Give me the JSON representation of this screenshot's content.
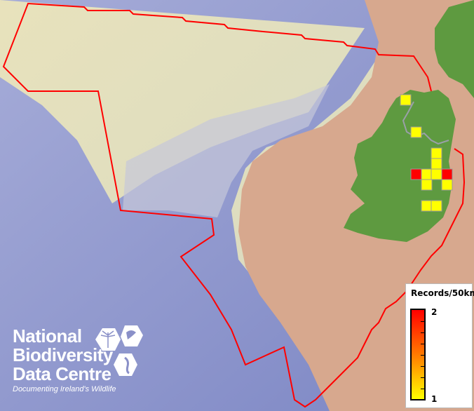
{
  "map": {
    "colors": {
      "sea_deep": "#8a90c8",
      "shelf": "#e6dfb8",
      "land_uk": "#d7a88e",
      "ireland": "#5e9a40",
      "boundary": "#ff0000",
      "record_low": "#ffff00",
      "record_high": "#ff0000"
    },
    "records": [
      1,
      1,
      1,
      1,
      2,
      1,
      1,
      2,
      1,
      1,
      1,
      1
    ]
  },
  "legend": {
    "title": "Records/50km",
    "max": "2",
    "min": "1"
  },
  "logo": {
    "line1": "National",
    "line2": "Biodiversity",
    "line3": "Data Centre",
    "tagline": "Documenting Ireland's Wildlife"
  }
}
